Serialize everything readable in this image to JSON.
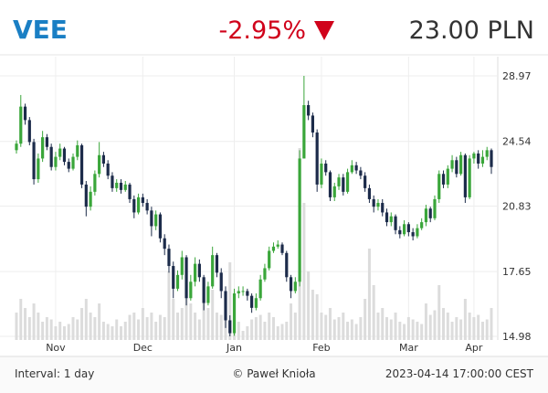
{
  "header": {
    "ticker": "VEE",
    "change": "-2.95%",
    "price": "23.00 PLN"
  },
  "footer": {
    "interval": "Interval: 1 day",
    "author": "© Paweł Knioła",
    "timestamp": "2023-04-14 17:00:00 CEST"
  },
  "chart_data": {
    "type": "candlestick",
    "log_scale": true,
    "grid": true,
    "up_color": "#3aa63a",
    "down_color": "#1c2b4a",
    "volume_color": "#dcdcdc",
    "ylim": [
      14.98,
      28.97
    ],
    "yticks": [
      28.97,
      24.54,
      20.83,
      17.65,
      14.98
    ],
    "categories": [
      null,
      null,
      null,
      null,
      null,
      null,
      null,
      null,
      null,
      "Nov",
      null,
      null,
      null,
      null,
      null,
      null,
      null,
      null,
      null,
      null,
      null,
      null,
      null,
      null,
      null,
      null,
      null,
      null,
      null,
      "Dec",
      null,
      null,
      null,
      null,
      null,
      null,
      null,
      null,
      null,
      null,
      null,
      null,
      null,
      null,
      null,
      null,
      null,
      null,
      null,
      null,
      "Jan",
      null,
      null,
      null,
      null,
      null,
      null,
      null,
      null,
      null,
      null,
      null,
      null,
      null,
      null,
      null,
      null,
      null,
      null,
      null,
      "Feb",
      null,
      null,
      null,
      null,
      null,
      null,
      null,
      null,
      null,
      null,
      null,
      null,
      null,
      null,
      null,
      null,
      null,
      null,
      null,
      "Mar",
      null,
      null,
      null,
      null,
      null,
      null,
      null,
      null,
      null,
      null,
      null,
      null,
      null,
      null,
      "Apr",
      null,
      null,
      null,
      null
    ],
    "open": [
      24.0,
      24.4,
      26.8,
      25.9,
      24.5,
      22.3,
      23.5,
      24.8,
      24.2,
      23.0,
      23.6,
      24.1,
      23.3,
      22.9,
      23.6,
      24.3,
      22.0,
      20.8,
      21.6,
      22.6,
      23.7,
      23.2,
      22.5,
      21.8,
      22.1,
      21.7,
      22.0,
      21.2,
      20.5,
      21.3,
      21.0,
      20.6,
      19.8,
      20.4,
      19.2,
      18.7,
      17.9,
      16.9,
      17.5,
      18.3,
      16.5,
      17.2,
      18.0,
      17.4,
      16.3,
      17.0,
      18.4,
      17.6,
      16.8,
      15.6,
      15.1,
      16.7,
      16.8,
      16.8,
      16.6,
      16.1,
      16.5,
      17.3,
      17.8,
      18.6,
      18.8,
      18.9,
      18.5,
      17.4,
      16.8,
      17.2,
      23.5,
      26.9,
      26.2,
      25.1,
      22.0,
      23.2,
      22.7,
      21.3,
      21.9,
      22.4,
      21.6,
      22.7,
      23.1,
      22.8,
      22.5,
      21.8,
      21.2,
      20.8,
      21.0,
      20.5,
      20.0,
      20.3,
      19.6,
      19.4,
      19.9,
      19.5,
      19.3,
      19.7,
      20.0,
      20.7,
      20.2,
      21.2,
      22.6,
      22.0,
      22.9,
      23.4,
      22.6,
      23.7,
      21.3,
      23.5,
      23.8,
      23.2,
      23.6,
      24.0
    ],
    "high": [
      24.6,
      27.6,
      27.0,
      26.1,
      24.7,
      23.8,
      25.2,
      25.0,
      24.4,
      23.9,
      24.4,
      24.2,
      23.5,
      23.8,
      24.6,
      24.4,
      22.2,
      21.9,
      22.8,
      24.5,
      23.9,
      23.4,
      22.7,
      22.3,
      22.3,
      22.2,
      22.1,
      21.4,
      21.5,
      21.5,
      21.2,
      20.8,
      20.6,
      20.5,
      19.4,
      18.9,
      18.1,
      17.7,
      18.6,
      18.4,
      17.5,
      18.3,
      18.2,
      17.5,
      17.2,
      18.8,
      18.5,
      17.8,
      17.0,
      15.8,
      16.9,
      17.0,
      17.0,
      16.9,
      16.7,
      16.7,
      17.5,
      18.0,
      18.8,
      19.0,
      19.1,
      19.0,
      18.6,
      17.5,
      17.4,
      24.0,
      28.97,
      27.2,
      26.4,
      25.3,
      23.5,
      23.4,
      22.8,
      22.1,
      22.6,
      22.6,
      22.9,
      23.4,
      23.3,
      23.0,
      22.7,
      22.0,
      21.4,
      21.2,
      21.2,
      20.7,
      20.5,
      20.4,
      19.8,
      20.1,
      20.0,
      19.7,
      19.9,
      20.2,
      20.9,
      20.8,
      21.4,
      22.8,
      22.8,
      23.1,
      23.7,
      23.6,
      23.9,
      23.8,
      23.7,
      23.9,
      24.0,
      24.0,
      24.2,
      24.1
    ],
    "low": [
      23.8,
      24.2,
      25.6,
      24.3,
      22.0,
      22.1,
      23.3,
      24.0,
      22.8,
      22.8,
      23.4,
      23.1,
      22.7,
      22.8,
      23.4,
      21.8,
      20.3,
      20.6,
      21.4,
      22.4,
      23.0,
      22.3,
      21.6,
      21.6,
      21.5,
      21.6,
      21.0,
      20.2,
      20.4,
      20.8,
      20.4,
      19.3,
      19.6,
      19.0,
      18.4,
      17.6,
      16.5,
      16.8,
      17.3,
      16.2,
      16.4,
      17.0,
      17.2,
      16.0,
      16.2,
      16.9,
      17.4,
      16.5,
      15.3,
      14.98,
      15.0,
      16.5,
      16.6,
      16.4,
      15.9,
      16.0,
      16.4,
      17.2,
      17.7,
      18.5,
      18.7,
      18.4,
      17.2,
      16.5,
      16.7,
      17.0,
      23.5,
      25.9,
      24.8,
      21.6,
      21.8,
      22.5,
      21.1,
      21.1,
      21.7,
      21.4,
      21.5,
      22.6,
      22.6,
      22.3,
      21.6,
      21.0,
      20.5,
      20.6,
      20.3,
      19.8,
      19.8,
      19.4,
      19.2,
      19.3,
      19.3,
      19.1,
      19.2,
      19.6,
      19.8,
      20.0,
      20.1,
      21.0,
      21.8,
      21.8,
      22.7,
      22.4,
      22.5,
      21.0,
      21.2,
      23.2,
      22.9,
      23.0,
      23.4,
      22.6
    ],
    "close": [
      24.4,
      26.8,
      25.9,
      24.5,
      22.3,
      23.5,
      24.8,
      24.2,
      23.0,
      23.6,
      24.1,
      23.3,
      22.9,
      23.6,
      24.3,
      22.0,
      20.8,
      21.6,
      22.6,
      23.7,
      23.2,
      22.5,
      21.8,
      22.1,
      21.7,
      22.0,
      21.2,
      20.5,
      21.3,
      21.0,
      20.6,
      19.8,
      20.4,
      19.2,
      18.7,
      17.9,
      16.9,
      17.5,
      18.3,
      16.5,
      17.2,
      18.0,
      17.4,
      16.3,
      17.0,
      18.4,
      17.6,
      16.8,
      15.6,
      15.1,
      16.7,
      16.8,
      16.8,
      16.6,
      16.1,
      16.5,
      17.3,
      17.8,
      18.6,
      18.8,
      18.9,
      18.5,
      17.4,
      16.8,
      17.2,
      23.5,
      26.9,
      26.2,
      25.1,
      22.0,
      23.2,
      22.7,
      21.3,
      21.9,
      22.4,
      21.6,
      22.7,
      23.1,
      22.8,
      22.5,
      21.8,
      21.2,
      20.8,
      21.0,
      20.5,
      20.0,
      20.3,
      19.6,
      19.4,
      19.9,
      19.5,
      19.3,
      19.7,
      20.0,
      20.7,
      20.2,
      21.2,
      22.6,
      22.0,
      22.9,
      23.4,
      22.6,
      23.7,
      21.3,
      23.5,
      23.8,
      23.2,
      23.6,
      24.0,
      23.0
    ],
    "volume": [
      60,
      90,
      70,
      50,
      80,
      60,
      40,
      50,
      45,
      30,
      40,
      30,
      35,
      50,
      45,
      70,
      90,
      60,
      50,
      80,
      40,
      35,
      30,
      45,
      30,
      40,
      55,
      60,
      45,
      70,
      50,
      60,
      40,
      55,
      50,
      150,
      90,
      60,
      70,
      120,
      80,
      60,
      45,
      130,
      70,
      110,
      60,
      55,
      90,
      170,
      60,
      40,
      20,
      30,
      45,
      50,
      55,
      40,
      60,
      50,
      30,
      35,
      40,
      80,
      60,
      420,
      300,
      150,
      110,
      100,
      60,
      55,
      70,
      45,
      50,
      60,
      40,
      45,
      35,
      50,
      90,
      200,
      120,
      60,
      70,
      50,
      45,
      60,
      40,
      35,
      50,
      45,
      40,
      35,
      80,
      55,
      65,
      120,
      70,
      60,
      40,
      50,
      45,
      90,
      60,
      50,
      55,
      40,
      45,
      70
    ]
  }
}
